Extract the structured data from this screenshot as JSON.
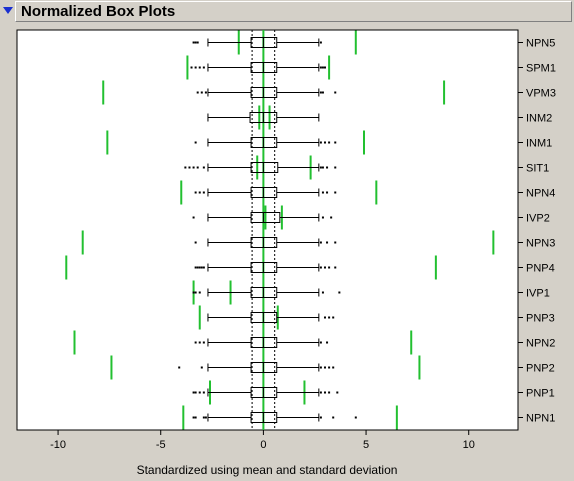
{
  "panel": {
    "title": "Normalized Box Plots"
  },
  "colors": {
    "accent": "#22c030",
    "frame": "#000000",
    "plot_bg": "#ffffff",
    "panel_bg": "#d4d0c8",
    "disclosure": "#1a2fd0"
  },
  "chart_data": {
    "type": "box",
    "orientation": "horizontal",
    "title": "",
    "xlabel": "Standardized using mean and standard deviation",
    "xlim": [
      -12,
      12.4
    ],
    "xticks": [
      -10,
      -5,
      0,
      5,
      10
    ],
    "xtick_labels": [
      "-10",
      "-5",
      "0",
      "5",
      "10"
    ],
    "reference_lines": [
      -0.55,
      0,
      0.55
    ],
    "categories": [
      "NPN5",
      "SPM1",
      "VPM3",
      "INM2",
      "INM1",
      "SIT1",
      "NPN4",
      "IVP2",
      "NPN3",
      "PNP4",
      "IVP1",
      "PNP3",
      "NPN2",
      "PNP2",
      "PNP1",
      "NPN1"
    ],
    "boxes": [
      {
        "q1": -0.6,
        "median": 0.0,
        "q3": 0.65,
        "whisker_low": -2.7,
        "whisker_high": 2.7,
        "outliers": [
          -3.4,
          -3.3,
          -3.2,
          2.8
        ]
      },
      {
        "q1": -0.6,
        "median": 0.0,
        "q3": 0.65,
        "whisker_low": -2.7,
        "whisker_high": 2.7,
        "outliers": [
          -3.5,
          -3.3,
          -3.1,
          -2.9,
          2.8,
          2.9,
          3.0
        ]
      },
      {
        "q1": -0.6,
        "median": 0.0,
        "q3": 0.65,
        "whisker_low": -2.7,
        "whisker_high": 2.7,
        "outliers": [
          -3.2,
          -3.0,
          -2.8,
          2.8,
          2.9,
          3.5
        ]
      },
      {
        "q1": -0.65,
        "median": 0.0,
        "q3": 0.65,
        "whisker_low": -2.7,
        "whisker_high": 2.7,
        "outliers": []
      },
      {
        "q1": -0.6,
        "median": 0.0,
        "q3": 0.65,
        "whisker_low": -2.7,
        "whisker_high": 2.7,
        "outliers": [
          -3.3,
          2.8,
          3.0,
          3.2,
          3.5
        ]
      },
      {
        "q1": -0.6,
        "median": 0.0,
        "q3": 0.7,
        "whisker_low": -2.7,
        "whisker_high": 2.7,
        "outliers": [
          -3.8,
          -3.6,
          -3.4,
          -3.2,
          -2.9,
          2.8,
          2.9,
          3.1,
          3.5
        ]
      },
      {
        "q1": -0.6,
        "median": 0.0,
        "q3": 0.65,
        "whisker_low": -2.7,
        "whisker_high": 2.7,
        "outliers": [
          -3.3,
          -3.1,
          -2.9,
          2.9,
          3.1,
          3.5
        ]
      },
      {
        "q1": -0.6,
        "median": 0.0,
        "q3": 0.8,
        "whisker_low": -2.7,
        "whisker_high": 2.7,
        "outliers": [
          -3.4,
          2.9,
          3.3
        ]
      },
      {
        "q1": -0.6,
        "median": 0.0,
        "q3": 0.65,
        "whisker_low": -2.7,
        "whisker_high": 2.7,
        "outliers": [
          -3.3,
          2.8,
          3.1,
          3.5
        ]
      },
      {
        "q1": -0.6,
        "median": 0.0,
        "q3": 0.65,
        "whisker_low": -2.7,
        "whisker_high": 2.7,
        "outliers": [
          -3.3,
          -3.2,
          -3.1,
          -3.0,
          -2.9,
          2.8,
          3.0,
          3.2,
          3.5
        ]
      },
      {
        "q1": -0.6,
        "median": 0.0,
        "q3": 0.65,
        "whisker_low": -2.7,
        "whisker_high": 2.7,
        "outliers": [
          -3.4,
          -3.3,
          -3.1,
          2.9,
          3.7
        ]
      },
      {
        "q1": -0.6,
        "median": 0.0,
        "q3": 0.65,
        "whisker_low": -2.7,
        "whisker_high": 2.7,
        "outliers": [
          3.0,
          3.2,
          3.4
        ]
      },
      {
        "q1": -0.6,
        "median": 0.0,
        "q3": 0.65,
        "whisker_low": -2.7,
        "whisker_high": 2.7,
        "outliers": [
          -3.3,
          -3.1,
          -2.9,
          2.8,
          3.1
        ]
      },
      {
        "q1": -0.6,
        "median": 0.0,
        "q3": 0.65,
        "whisker_low": -2.7,
        "whisker_high": 2.7,
        "outliers": [
          -4.1,
          -3.0,
          2.8,
          3.0,
          3.2,
          3.4
        ]
      },
      {
        "q1": -0.6,
        "median": 0.0,
        "q3": 0.65,
        "whisker_low": -2.7,
        "whisker_high": 2.7,
        "outliers": [
          -3.4,
          -3.3,
          -3.1,
          -2.9,
          2.8,
          3.0,
          3.2,
          3.6
        ]
      },
      {
        "q1": -0.6,
        "median": 0.0,
        "q3": 0.65,
        "whisker_low": -2.7,
        "whisker_high": 2.7,
        "outliers": [
          -3.4,
          -3.3,
          -2.9,
          -2.8,
          2.8,
          3.4,
          4.5
        ]
      }
    ],
    "marks": [
      [
        -1.2,
        4.5
      ],
      [
        -3.7,
        3.2
      ],
      [
        -7.8,
        8.8
      ],
      [
        -0.2,
        0.3
      ],
      [
        -7.6,
        4.9
      ],
      [
        -0.3,
        2.3
      ],
      [
        -4.0,
        5.5
      ],
      [
        0.1,
        0.9
      ],
      [
        -8.8,
        11.2
      ],
      [
        -9.6,
        8.4
      ],
      [
        -3.4,
        -1.6
      ],
      [
        -3.1,
        0.7
      ],
      [
        -9.2,
        7.2
      ],
      [
        -7.4,
        7.6
      ],
      [
        -2.6,
        2.0
      ],
      [
        -3.9,
        6.5
      ]
    ]
  }
}
